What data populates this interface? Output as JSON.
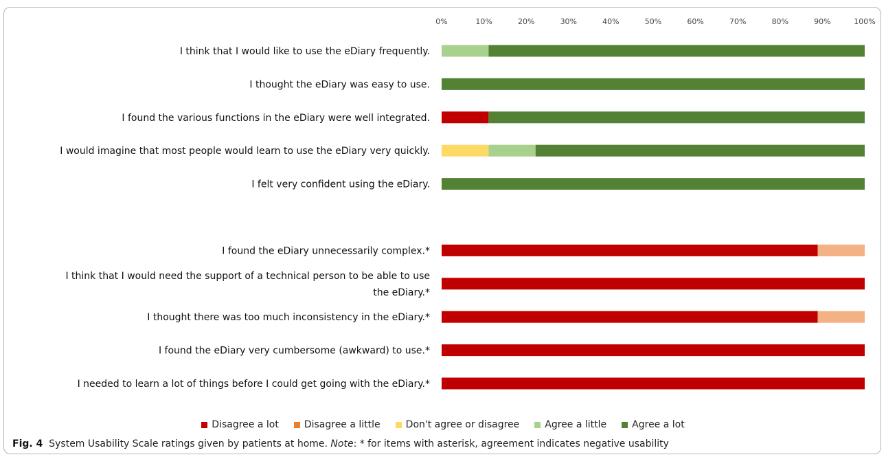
{
  "caption": {
    "fig_label": "Fig. 4",
    "text": "System Usability Scale ratings given by patients at home.",
    "note_label": "Note",
    "note_text": ": * for items with asterisk, agreement indicates negative usability"
  },
  "chart_data": {
    "type": "bar",
    "orientation": "horizontal",
    "stacked": "100%",
    "title": "",
    "xlabel": "",
    "ylabel": "",
    "xlim": [
      0,
      100
    ],
    "x_ticks": [
      "0%",
      "10%",
      "20%",
      "30%",
      "40%",
      "50%",
      "60%",
      "70%",
      "80%",
      "90%",
      "100%"
    ],
    "grid": false,
    "legend_position": "bottom",
    "categories": [
      [
        "I think that I would like to use the eDiary frequently."
      ],
      [
        "I thought the eDiary was easy to use."
      ],
      [
        "I found the various functions in the eDiary were well integrated."
      ],
      [
        "I would imagine that most people would learn to use the eDiary very quickly."
      ],
      [
        "I felt very confident using the eDiary."
      ],
      [
        ""
      ],
      [
        "I found the eDiary unnecessarily complex.*"
      ],
      [
        "I think that I would need the support of a technical person to be able to use",
        "the eDiary.*"
      ],
      [
        "I thought there was too much inconsistency in the eDiary.*"
      ],
      [
        "I found the eDiary very cumbersome (awkward) to use.*"
      ],
      [
        "I needed to learn a lot of things before I could get going with the eDiary.*"
      ]
    ],
    "series": [
      {
        "name": "Disagree a lot",
        "color": "#c00000",
        "values": [
          0,
          0,
          11.1,
          0,
          0,
          0,
          88.9,
          100,
          88.9,
          100,
          100
        ]
      },
      {
        "name": "Disagree a little",
        "color": "#f4b183",
        "values": [
          0,
          0,
          0,
          0,
          0,
          0,
          11.1,
          0,
          11.1,
          0,
          0
        ]
      },
      {
        "name": "Don't agree or disagree",
        "color": "#ffd966",
        "values": [
          0,
          0,
          0,
          11.1,
          0,
          0,
          0,
          0,
          0,
          0,
          0
        ]
      },
      {
        "name": "Agree a little",
        "color": "#a9d18e",
        "values": [
          11.1,
          0,
          0,
          11.1,
          0,
          0,
          0,
          0,
          0,
          0,
          0
        ]
      },
      {
        "name": "Agree a lot",
        "color": "#548235",
        "values": [
          88.9,
          100,
          88.9,
          77.8,
          100,
          0,
          0,
          0,
          0,
          0,
          0
        ]
      }
    ],
    "legend_colors": [
      "#c00000",
      "#ed7d31",
      "#ffd966",
      "#a9d18e",
      "#548235"
    ]
  }
}
